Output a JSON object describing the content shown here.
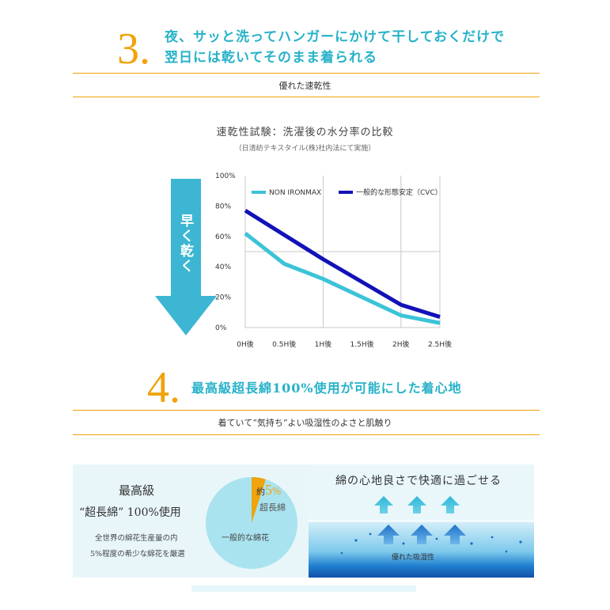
{
  "section3": {
    "number": "3.",
    "title_line1": "夜、サッと洗ってハンガーにかけて干しておくだけで",
    "title_line2": "翌日には乾いてそのまま着られる",
    "subtitle": "優れた速乾性"
  },
  "chart_data": {
    "type": "line",
    "title": "速乾性試験：洗濯後の水分率の比較",
    "note": "（日清紡テキスタイル(株)社内法にて実施）",
    "categories": [
      "0H後",
      "0.5H後",
      "1H後",
      "1.5H後",
      "2H後",
      "2.5H後"
    ],
    "yticks": [
      "100%",
      "80%",
      "60%",
      "40%",
      "20%",
      "0%"
    ],
    "ylim": [
      0,
      100
    ],
    "grid": true,
    "legend_position": "top",
    "series": [
      {
        "name": "NON IRONMAX",
        "color": "#3cc3d8",
        "values": [
          62,
          42,
          32,
          20,
          8,
          3
        ]
      },
      {
        "name": "一般的な形態安定（CVC）",
        "color": "#1212b8",
        "values": [
          77,
          61,
          45,
          30,
          15,
          7
        ]
      }
    ]
  },
  "arrow": {
    "label": "早く乾く",
    "color": "#3cb6d2"
  },
  "section4": {
    "number": "4.",
    "title": "最高級超長綿100%使用が可能にした着心地",
    "subtitle": "着ていて“気持ち”よい吸湿性のよさと肌触り"
  },
  "left_panel": {
    "title_line1": "最高級",
    "title_line2": "“超長綿” 100%使用",
    "text_line1": "全世界の綿花生産量の内",
    "text_line2": "5%程度の希少な綿花を厳選",
    "pie_highlight_prefix": "約",
    "pie_highlight_value": "5",
    "pie_highlight_unit": "%",
    "pie_highlight_label": "超長綿",
    "pie_rest_label": "一般的な綿花",
    "pie_share": 0.05,
    "pie_color": "#a9e3ef",
    "pie_highlight_color": "#f0a30a"
  },
  "right_panel": {
    "title": "綿の心地良さで快適に過ごせる",
    "bottom_label": "優れた吸湿性"
  }
}
